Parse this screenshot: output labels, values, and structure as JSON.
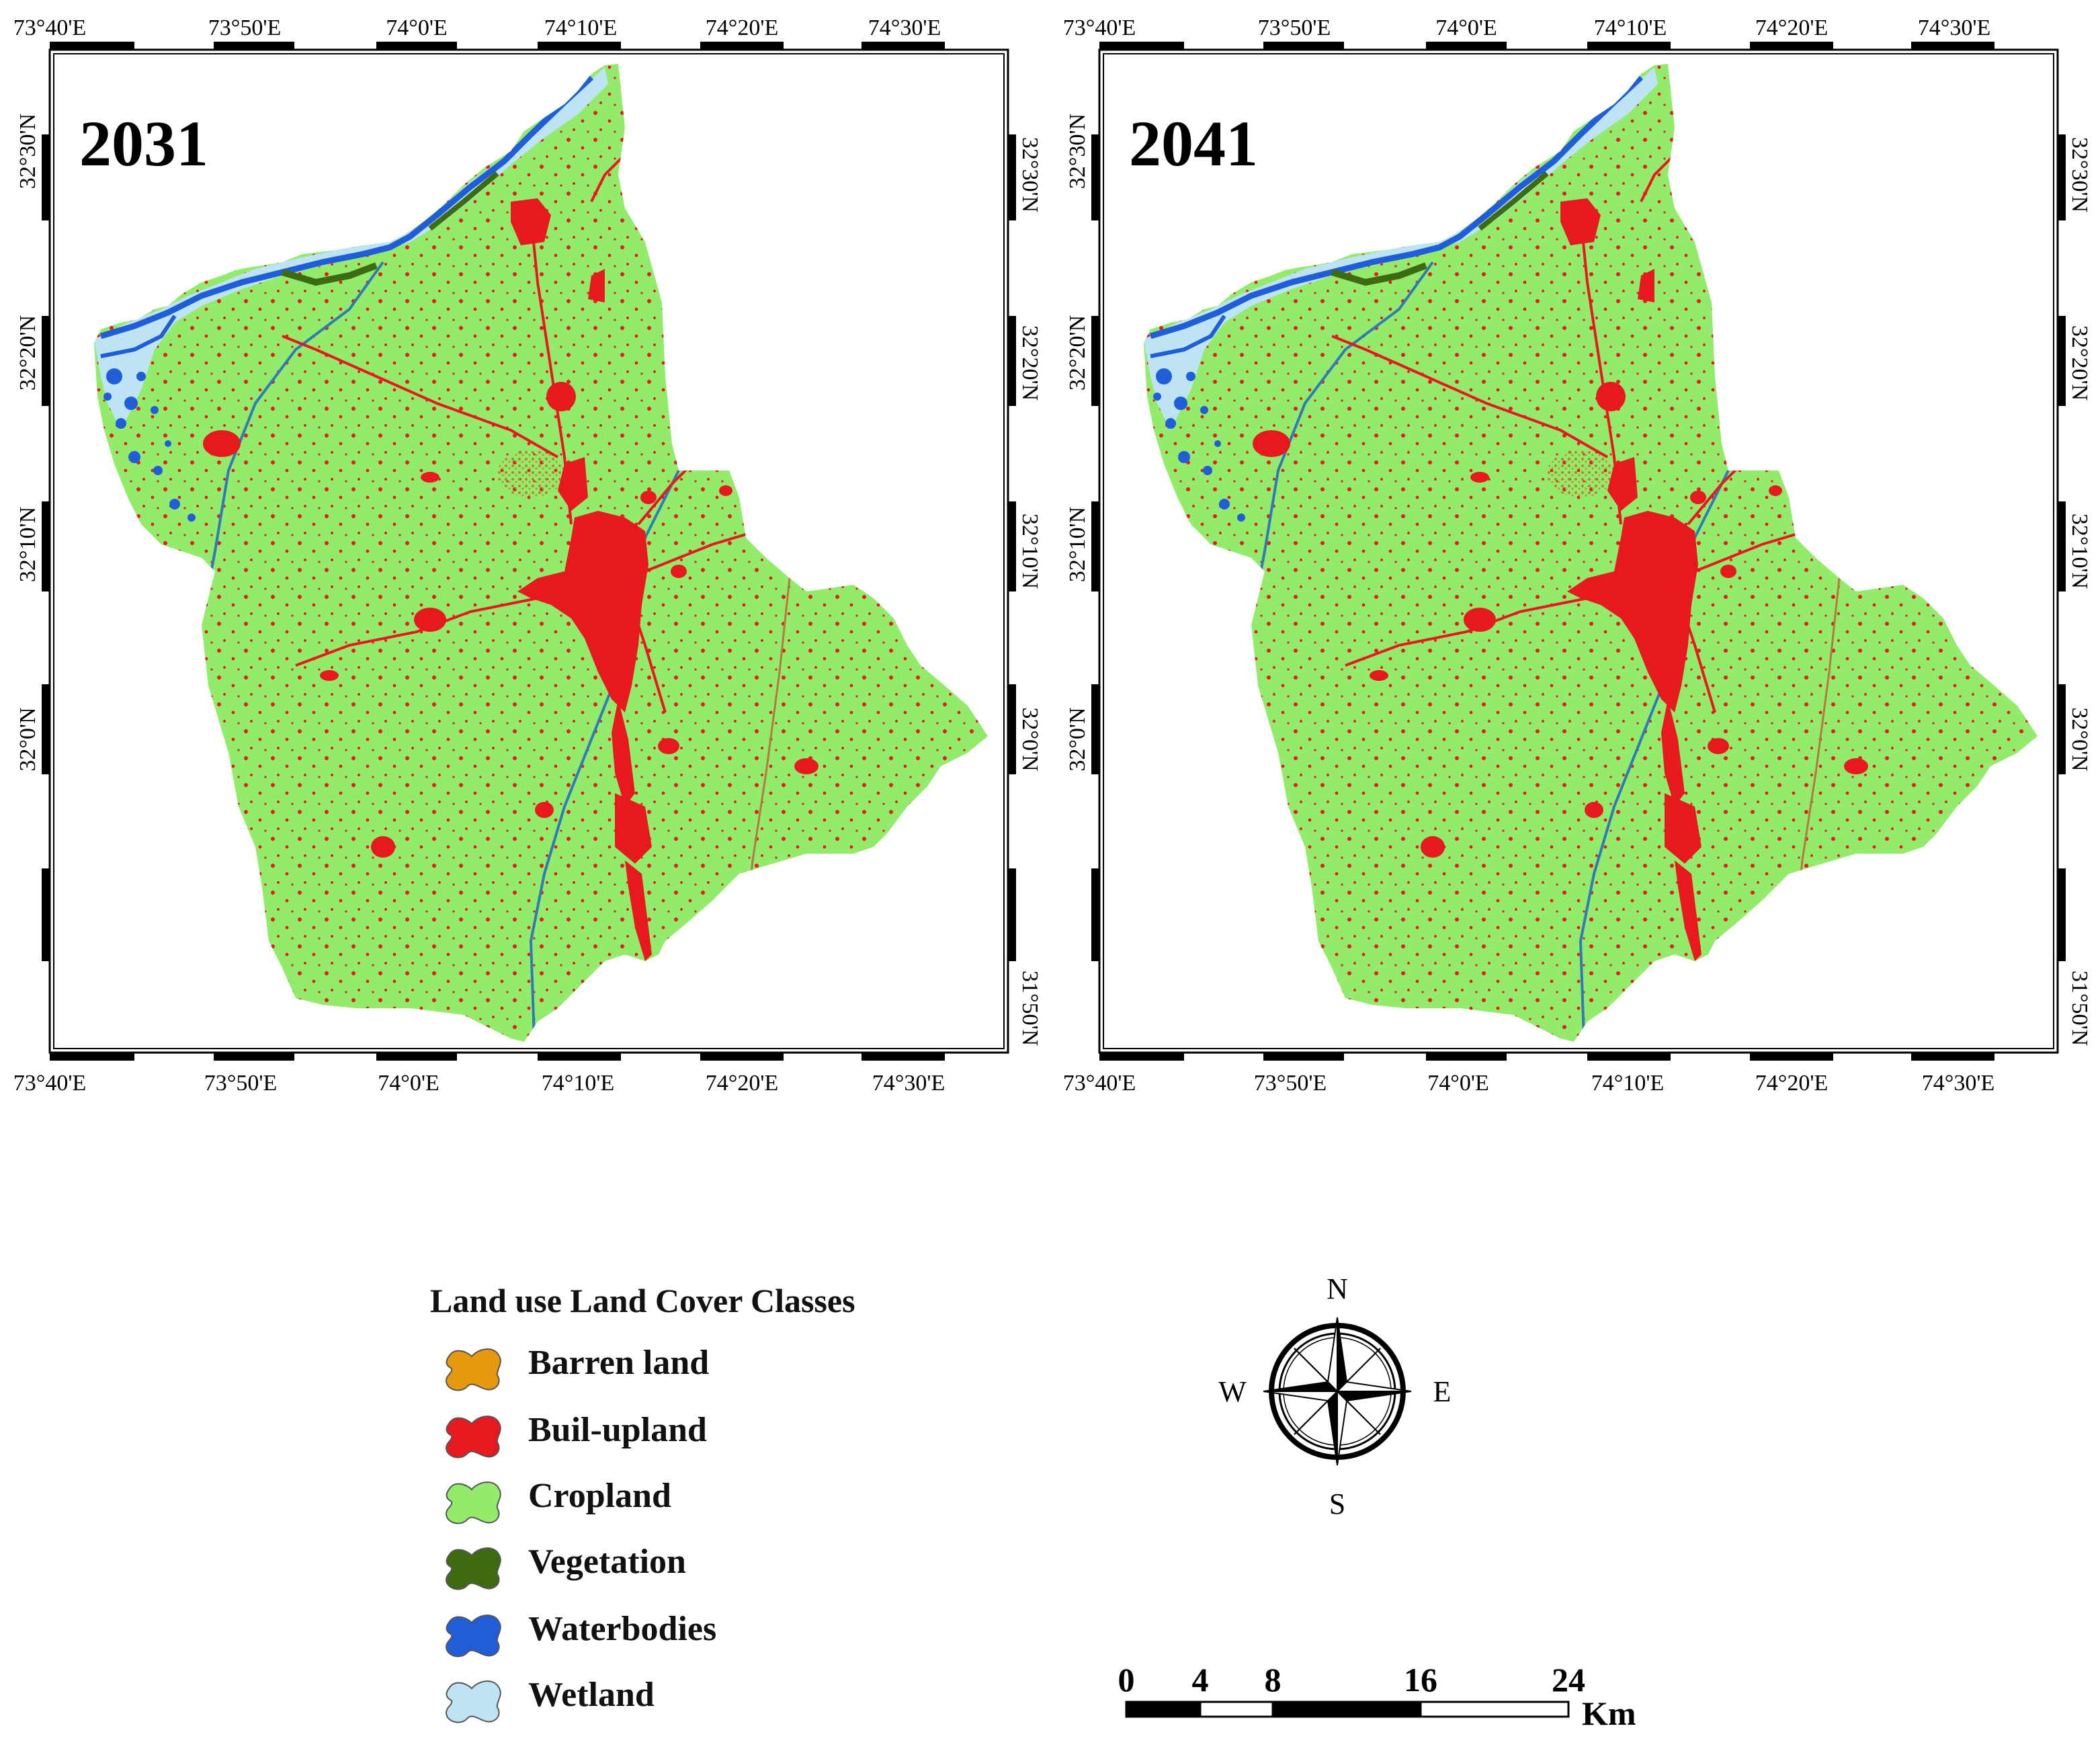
{
  "colors": {
    "barren": "#E5990F",
    "builtup": "#E8191E",
    "cropland": "#93EB6C",
    "vegetation": "#3E6A12",
    "waterbodies": "#1F5ED8",
    "wetland": "#BDE3F4"
  },
  "maps": [
    {
      "year": "2031",
      "top_labels": [
        "73°40'E",
        "73°50'E",
        "74°0'E",
        "74°10'E",
        "74°20'E",
        "74°30'E"
      ],
      "bottom_labels": [
        "73°40'E",
        "73°50'E",
        "74°0'E",
        "74°10'E",
        "74°20'E",
        "74°30'E"
      ],
      "left_labels": [
        "32°30'N",
        "32°20'N",
        "32°10'N",
        "32°0'N"
      ],
      "right_labels": [
        "32°30'N",
        "32°20'N",
        "32°10'N",
        "32°0'N",
        "31°50'N"
      ]
    },
    {
      "year": "2041",
      "top_labels": [
        "73°40'E",
        "73°50'E",
        "74°0'E",
        "74°10'E",
        "74°20'E",
        "74°30'E"
      ],
      "bottom_labels": [
        "73°40'E",
        "73°50'E",
        "74°0'E",
        "74°10'E",
        "74°20'E",
        "74°30'E"
      ],
      "left_labels": [
        "32°30'N",
        "32°20'N",
        "32°10'N",
        "32°0'N"
      ],
      "right_labels": [
        "32°30'N",
        "32°20'N",
        "32°10'N",
        "32°0'N",
        "31°50'N"
      ]
    }
  ],
  "legend": {
    "title": "Land use Land Cover Classes",
    "items": [
      {
        "label": "Barren land",
        "color_key": "barren"
      },
      {
        "label": "Buil-upland",
        "color_key": "builtup"
      },
      {
        "label": "Cropland",
        "color_key": "cropland"
      },
      {
        "label": "Vegetation",
        "color_key": "vegetation"
      },
      {
        "label": "Waterbodies",
        "color_key": "waterbodies"
      },
      {
        "label": "Wetland",
        "color_key": "wetland"
      }
    ]
  },
  "compass": {
    "n": "N",
    "e": "E",
    "s": "S",
    "w": "W",
    "icon": "compass-rose-icon"
  },
  "scalebar": {
    "ticks": [
      "0",
      "4",
      "8",
      "16",
      "24"
    ],
    "unit": "Km"
  }
}
